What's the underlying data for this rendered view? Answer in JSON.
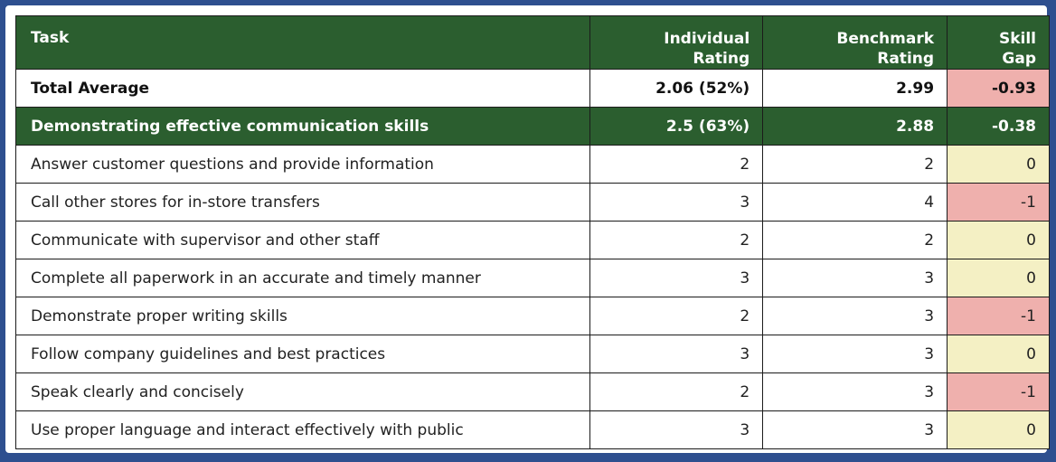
{
  "headers": {
    "task": "Task",
    "individual_line1": "Individual",
    "individual_line2": "Rating",
    "benchmark_line1": "Benchmark",
    "benchmark_line2": "Rating",
    "gap_line1": "Skill",
    "gap_line2": "Gap"
  },
  "total": {
    "task": "Total Average",
    "individual": "2.06 (52%)",
    "benchmark": "2.99",
    "gap": "-0.93"
  },
  "section": {
    "task": "Demonstrating effective communication skills",
    "individual": "2.5 (63%)",
    "benchmark": "2.88",
    "gap": "-0.38"
  },
  "rows": [
    {
      "task": "Answer customer questions and provide information",
      "individual": "2",
      "benchmark": "2",
      "gap": "0"
    },
    {
      "task": "Call other stores for in-store transfers",
      "individual": "3",
      "benchmark": "4",
      "gap": "-1"
    },
    {
      "task": "Communicate with supervisor and other staff",
      "individual": "2",
      "benchmark": "2",
      "gap": "0"
    },
    {
      "task": "Complete all paperwork in an accurate and timely manner",
      "individual": "3",
      "benchmark": "3",
      "gap": "0"
    },
    {
      "task": "Demonstrate proper writing skills",
      "individual": "2",
      "benchmark": "3",
      "gap": "-1"
    },
    {
      "task": "Follow company guidelines and best practices",
      "individual": "3",
      "benchmark": "3",
      "gap": "0"
    },
    {
      "task": "Speak clearly and concisely",
      "individual": "2",
      "benchmark": "3",
      "gap": "-1"
    },
    {
      "task": "Use proper language and interact effectively with public",
      "individual": "3",
      "benchmark": "3",
      "gap": "0"
    }
  ],
  "colors": {
    "header_green": "#2b5e2f",
    "gap_negative": "#efb0ad",
    "gap_zero": "#f4f0c4",
    "frame_blue": "#2e4f8f"
  }
}
